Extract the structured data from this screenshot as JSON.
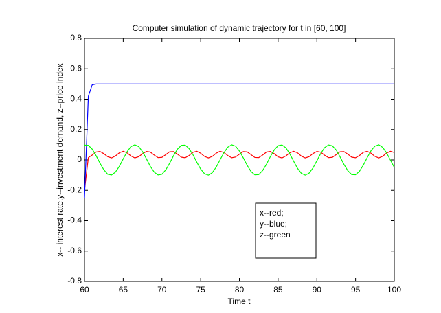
{
  "chart_data": {
    "type": "line",
    "title": "Computer simulation of dynamic trajectory for t in [60, 100]",
    "xlabel": "Time t",
    "ylabel": "x-- interest rate,y--investment demand, z--price index",
    "x": [
      60,
      60.5,
      61,
      61.5,
      62,
      62.5,
      63,
      63.5,
      64,
      64.5,
      65,
      65.5,
      66,
      66.5,
      67,
      67.5,
      68,
      68.5,
      69,
      69.5,
      70,
      70.5,
      71,
      71.5,
      72,
      72.5,
      73,
      73.5,
      74,
      74.5,
      75,
      75.5,
      76,
      76.5,
      77,
      77.5,
      78,
      78.5,
      79,
      79.5,
      80,
      80.5,
      81,
      81.5,
      82,
      82.5,
      83,
      83.5,
      84,
      84.5,
      85,
      85.5,
      86,
      86.5,
      87,
      87.5,
      88,
      88.5,
      89,
      89.5,
      90,
      90.5,
      91,
      91.5,
      92,
      92.5,
      93,
      93.5,
      94,
      94.5,
      95,
      95.5,
      96,
      96.5,
      97,
      97.5,
      98,
      98.5,
      99,
      99.5,
      100
    ],
    "series": [
      {
        "name": "x--red;",
        "color": "#ff0000",
        "values": [
          -0.2,
          0.015,
          0.032,
          0.052,
          0.056,
          0.041,
          0.021,
          0.013,
          0.026,
          0.047,
          0.057,
          0.047,
          0.026,
          0.013,
          0.021,
          0.041,
          0.056,
          0.052,
          0.032,
          0.015,
          0.017,
          0.035,
          0.054,
          0.055,
          0.038,
          0.018,
          0.014,
          0.029,
          0.05,
          0.057,
          0.044,
          0.023,
          0.013,
          0.023,
          0.044,
          0.057,
          0.049,
          0.029,
          0.014,
          0.019,
          0.038,
          0.055,
          0.053,
          0.035,
          0.016,
          0.015,
          0.032,
          0.052,
          0.056,
          0.041,
          0.02,
          0.013,
          0.026,
          0.047,
          0.057,
          0.047,
          0.025,
          0.013,
          0.021,
          0.042,
          0.056,
          0.051,
          0.031,
          0.015,
          0.017,
          0.035,
          0.054,
          0.055,
          0.038,
          0.018,
          0.014,
          0.029,
          0.05,
          0.057,
          0.044,
          0.023,
          0.013,
          0.024,
          0.045,
          0.057,
          0.049
        ]
      },
      {
        "name": "y--blue;",
        "color": "#0000ff",
        "values": [
          -0.25,
          0.42,
          0.495,
          0.5,
          0.5,
          0.5,
          0.5,
          0.5,
          0.5,
          0.5,
          0.5,
          0.5,
          0.5,
          0.5,
          0.5,
          0.5,
          0.5,
          0.5,
          0.5,
          0.5,
          0.5,
          0.5,
          0.5,
          0.5,
          0.5,
          0.5,
          0.5,
          0.5,
          0.5,
          0.5,
          0.5,
          0.5,
          0.5,
          0.5,
          0.5,
          0.5,
          0.5,
          0.5,
          0.5,
          0.5,
          0.5,
          0.5,
          0.5,
          0.5,
          0.5,
          0.5,
          0.5,
          0.5,
          0.5,
          0.5,
          0.5,
          0.5,
          0.5,
          0.5,
          0.5,
          0.5,
          0.5,
          0.5,
          0.5,
          0.5,
          0.5,
          0.5,
          0.5,
          0.5,
          0.5,
          0.5,
          0.5,
          0.5,
          0.5,
          0.5,
          0.5,
          0.5,
          0.5,
          0.5,
          0.5,
          0.5,
          0.5,
          0.5,
          0.5,
          0.5,
          0.5
        ]
      },
      {
        "name": "z--green",
        "color": "#00ff00",
        "values": [
          0.098,
          0.096,
          0.071,
          0.028,
          -0.021,
          -0.065,
          -0.094,
          -0.099,
          -0.08,
          -0.042,
          0.007,
          0.054,
          0.088,
          0.1,
          0.088,
          0.054,
          0.007,
          -0.042,
          -0.08,
          -0.099,
          -0.094,
          -0.065,
          -0.021,
          0.028,
          0.071,
          0.096,
          0.098,
          0.075,
          0.035,
          -0.015,
          -0.06,
          -0.091,
          -0.1,
          -0.084,
          -0.048,
          0,
          0.048,
          0.084,
          0.1,
          0.091,
          0.059,
          0.014,
          -0.035,
          -0.076,
          -0.098,
          -0.096,
          -0.07,
          -0.028,
          0.022,
          0.066,
          0.094,
          0.099,
          0.08,
          0.041,
          -0.008,
          -0.055,
          -0.088,
          -0.1,
          -0.087,
          -0.053,
          -0.006,
          0.042,
          0.081,
          0.099,
          0.093,
          0.065,
          0.02,
          -0.029,
          -0.071,
          -0.096,
          -0.097,
          -0.075,
          -0.034,
          0.015,
          0.061,
          0.091,
          0.1,
          0.083,
          0.047,
          -0.001,
          -0.049
        ]
      }
    ],
    "xlim": [
      60,
      100
    ],
    "xticks": [
      60,
      65,
      70,
      75,
      80,
      85,
      90,
      95,
      100
    ],
    "ylim": [
      -0.8,
      0.8
    ],
    "yticks": [
      -0.8,
      -0.6,
      -0.4,
      -0.2,
      0,
      0.2,
      0.4,
      0.6,
      0.8
    ],
    "legend_loc": "lower center"
  }
}
